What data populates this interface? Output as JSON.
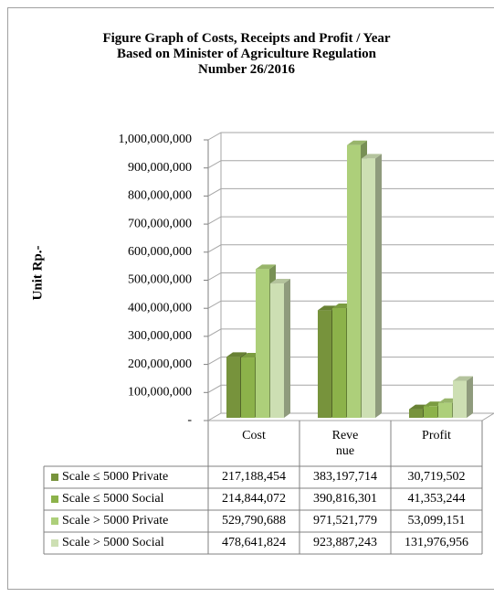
{
  "chart_data": {
    "type": "bar3d",
    "title": "Figure Graph of Costs, Receipts and Profit / Year\nBased on Minister of Agriculture Regulation\nNumber 26/2016",
    "y_label": "Unit Rp.-",
    "categories": [
      "Cost",
      "Reve nue",
      "Profit"
    ],
    "series": [
      {
        "name": "Scale ≤ 5000 Private",
        "color": "#77933c",
        "values": [
          217188454,
          383197714,
          30719502
        ],
        "value_labels": [
          "217,188,454",
          "383,197,714",
          "30,719,502"
        ]
      },
      {
        "name": "Scale ≤ 5000 Social",
        "color": "#8cb24a",
        "values": [
          214844072,
          390816301,
          41353244
        ],
        "value_labels": [
          "214,844,072",
          "390,816,301",
          "41,353,244"
        ]
      },
      {
        "name": "Scale > 5000 Private",
        "color": "#adcf7a",
        "values": [
          529790688,
          971521779,
          53099151
        ],
        "value_labels": [
          "529,790,688",
          "971,521,779",
          "53,099,151"
        ]
      },
      {
        "name": "Scale > 5000 Social",
        "color": "#cddfb3",
        "values": [
          478641824,
          923887243,
          131976956
        ],
        "value_labels": [
          "478,641,824",
          "923,887,243",
          "131,976,956"
        ]
      }
    ],
    "ylim": [
      0,
      1000000000
    ],
    "yticks": [
      {
        "value": 0,
        "label": "-"
      },
      {
        "value": 100000000,
        "label": "100,000,000"
      },
      {
        "value": 200000000,
        "label": "200,000,000"
      },
      {
        "value": 300000000,
        "label": "300,000,000"
      },
      {
        "value": 400000000,
        "label": "400,000,000"
      },
      {
        "value": 500000000,
        "label": "500,000,000"
      },
      {
        "value": 600000000,
        "label": "600,000,000"
      },
      {
        "value": 700000000,
        "label": "700,000,000"
      },
      {
        "value": 800000000,
        "label": "800,000,000"
      },
      {
        "value": 900000000,
        "label": "900,000,000"
      },
      {
        "value": 1000000000,
        "label": "1,000,000,000"
      }
    ],
    "grid": true
  }
}
